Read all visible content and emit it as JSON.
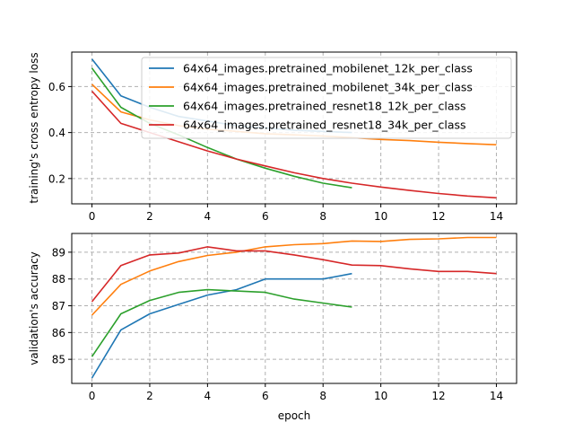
{
  "chart_data": [
    {
      "type": "line",
      "ylabel": "training's cross entropy loss",
      "xlabel": "",
      "grid": true,
      "legend_position": "top-right",
      "xlim": [
        -0.7,
        14.7
      ],
      "ylim": [
        0.09,
        0.75
      ],
      "xticks": [
        0,
        2,
        4,
        6,
        8,
        10,
        12,
        14
      ],
      "yticks": [
        0.2,
        0.4,
        0.6
      ],
      "ytick_labels": [
        "0.2",
        "0.4",
        "0.6"
      ],
      "series": [
        {
          "name": "64x64_images.pretrained_mobilenet_12k_per_class",
          "color": "#1f77b4",
          "x": [
            0,
            1,
            2,
            3,
            4,
            5,
            6,
            7,
            8,
            9
          ],
          "y": [
            0.72,
            0.56,
            0.51,
            0.47,
            0.45,
            0.43,
            0.42,
            0.41,
            0.405,
            0.4
          ]
        },
        {
          "name": "64x64_images.pretrained_mobilenet_34k_per_class",
          "color": "#ff7f0e",
          "x": [
            0,
            1,
            2,
            3,
            4,
            5,
            6,
            7,
            8,
            9,
            10,
            11,
            12,
            13,
            14
          ],
          "y": [
            0.61,
            0.49,
            0.455,
            0.43,
            0.415,
            0.405,
            0.395,
            0.39,
            0.385,
            0.378,
            0.37,
            0.365,
            0.358,
            0.352,
            0.347
          ]
        },
        {
          "name": "64x64_images.pretrained_resnet18_12k_per_class",
          "color": "#2ca02c",
          "x": [
            0,
            1,
            2,
            3,
            4,
            5,
            6,
            7,
            8,
            9
          ],
          "y": [
            0.68,
            0.51,
            0.44,
            0.39,
            0.335,
            0.285,
            0.245,
            0.21,
            0.18,
            0.16
          ]
        },
        {
          "name": "64x64_images.pretrained_resnet18_34k_per_class",
          "color": "#d62728",
          "x": [
            0,
            1,
            2,
            3,
            4,
            5,
            6,
            7,
            8,
            9,
            10,
            11,
            12,
            13,
            14
          ],
          "y": [
            0.58,
            0.44,
            0.4,
            0.36,
            0.32,
            0.285,
            0.255,
            0.225,
            0.2,
            0.18,
            0.163,
            0.148,
            0.135,
            0.124,
            0.116
          ]
        }
      ]
    },
    {
      "type": "line",
      "ylabel": "validation's accuracy",
      "xlabel": "epoch",
      "grid": true,
      "xlim": [
        -0.7,
        14.7
      ],
      "ylim": [
        84.1,
        89.7
      ],
      "xticks": [
        0,
        2,
        4,
        6,
        8,
        10,
        12,
        14
      ],
      "yticks": [
        85,
        86,
        87,
        88,
        89
      ],
      "ytick_labels": [
        "85",
        "86",
        "87",
        "88",
        "89"
      ],
      "series": [
        {
          "name": "64x64_images.pretrained_mobilenet_12k_per_class",
          "color": "#1f77b4",
          "x": [
            0,
            1,
            2,
            3,
            4,
            5,
            6,
            7,
            8,
            9
          ],
          "y": [
            84.3,
            86.1,
            86.7,
            87.05,
            87.4,
            87.6,
            88.0,
            88.0,
            88.0,
            88.2
          ]
        },
        {
          "name": "64x64_images.pretrained_mobilenet_34k_per_class",
          "color": "#ff7f0e",
          "x": [
            0,
            1,
            2,
            3,
            4,
            5,
            6,
            7,
            8,
            9,
            10,
            11,
            12,
            13,
            14
          ],
          "y": [
            86.65,
            87.8,
            88.3,
            88.65,
            88.88,
            89.0,
            89.2,
            89.28,
            89.32,
            89.42,
            89.4,
            89.48,
            89.5,
            89.55,
            89.55
          ]
        },
        {
          "name": "64x64_images.pretrained_resnet18_12k_per_class",
          "color": "#2ca02c",
          "x": [
            0,
            1,
            2,
            3,
            4,
            5,
            6,
            7,
            8,
            9
          ],
          "y": [
            85.1,
            86.7,
            87.2,
            87.5,
            87.6,
            87.55,
            87.5,
            87.25,
            87.1,
            86.95
          ]
        },
        {
          "name": "64x64_images.pretrained_resnet18_34k_per_class",
          "color": "#d62728",
          "x": [
            0,
            1,
            2,
            3,
            4,
            5,
            6,
            7,
            8,
            9,
            10,
            11,
            12,
            13,
            14
          ],
          "y": [
            87.15,
            88.5,
            88.9,
            88.97,
            89.2,
            89.05,
            89.05,
            88.9,
            88.72,
            88.52,
            88.5,
            88.38,
            88.28,
            88.28,
            88.2
          ]
        }
      ]
    }
  ]
}
